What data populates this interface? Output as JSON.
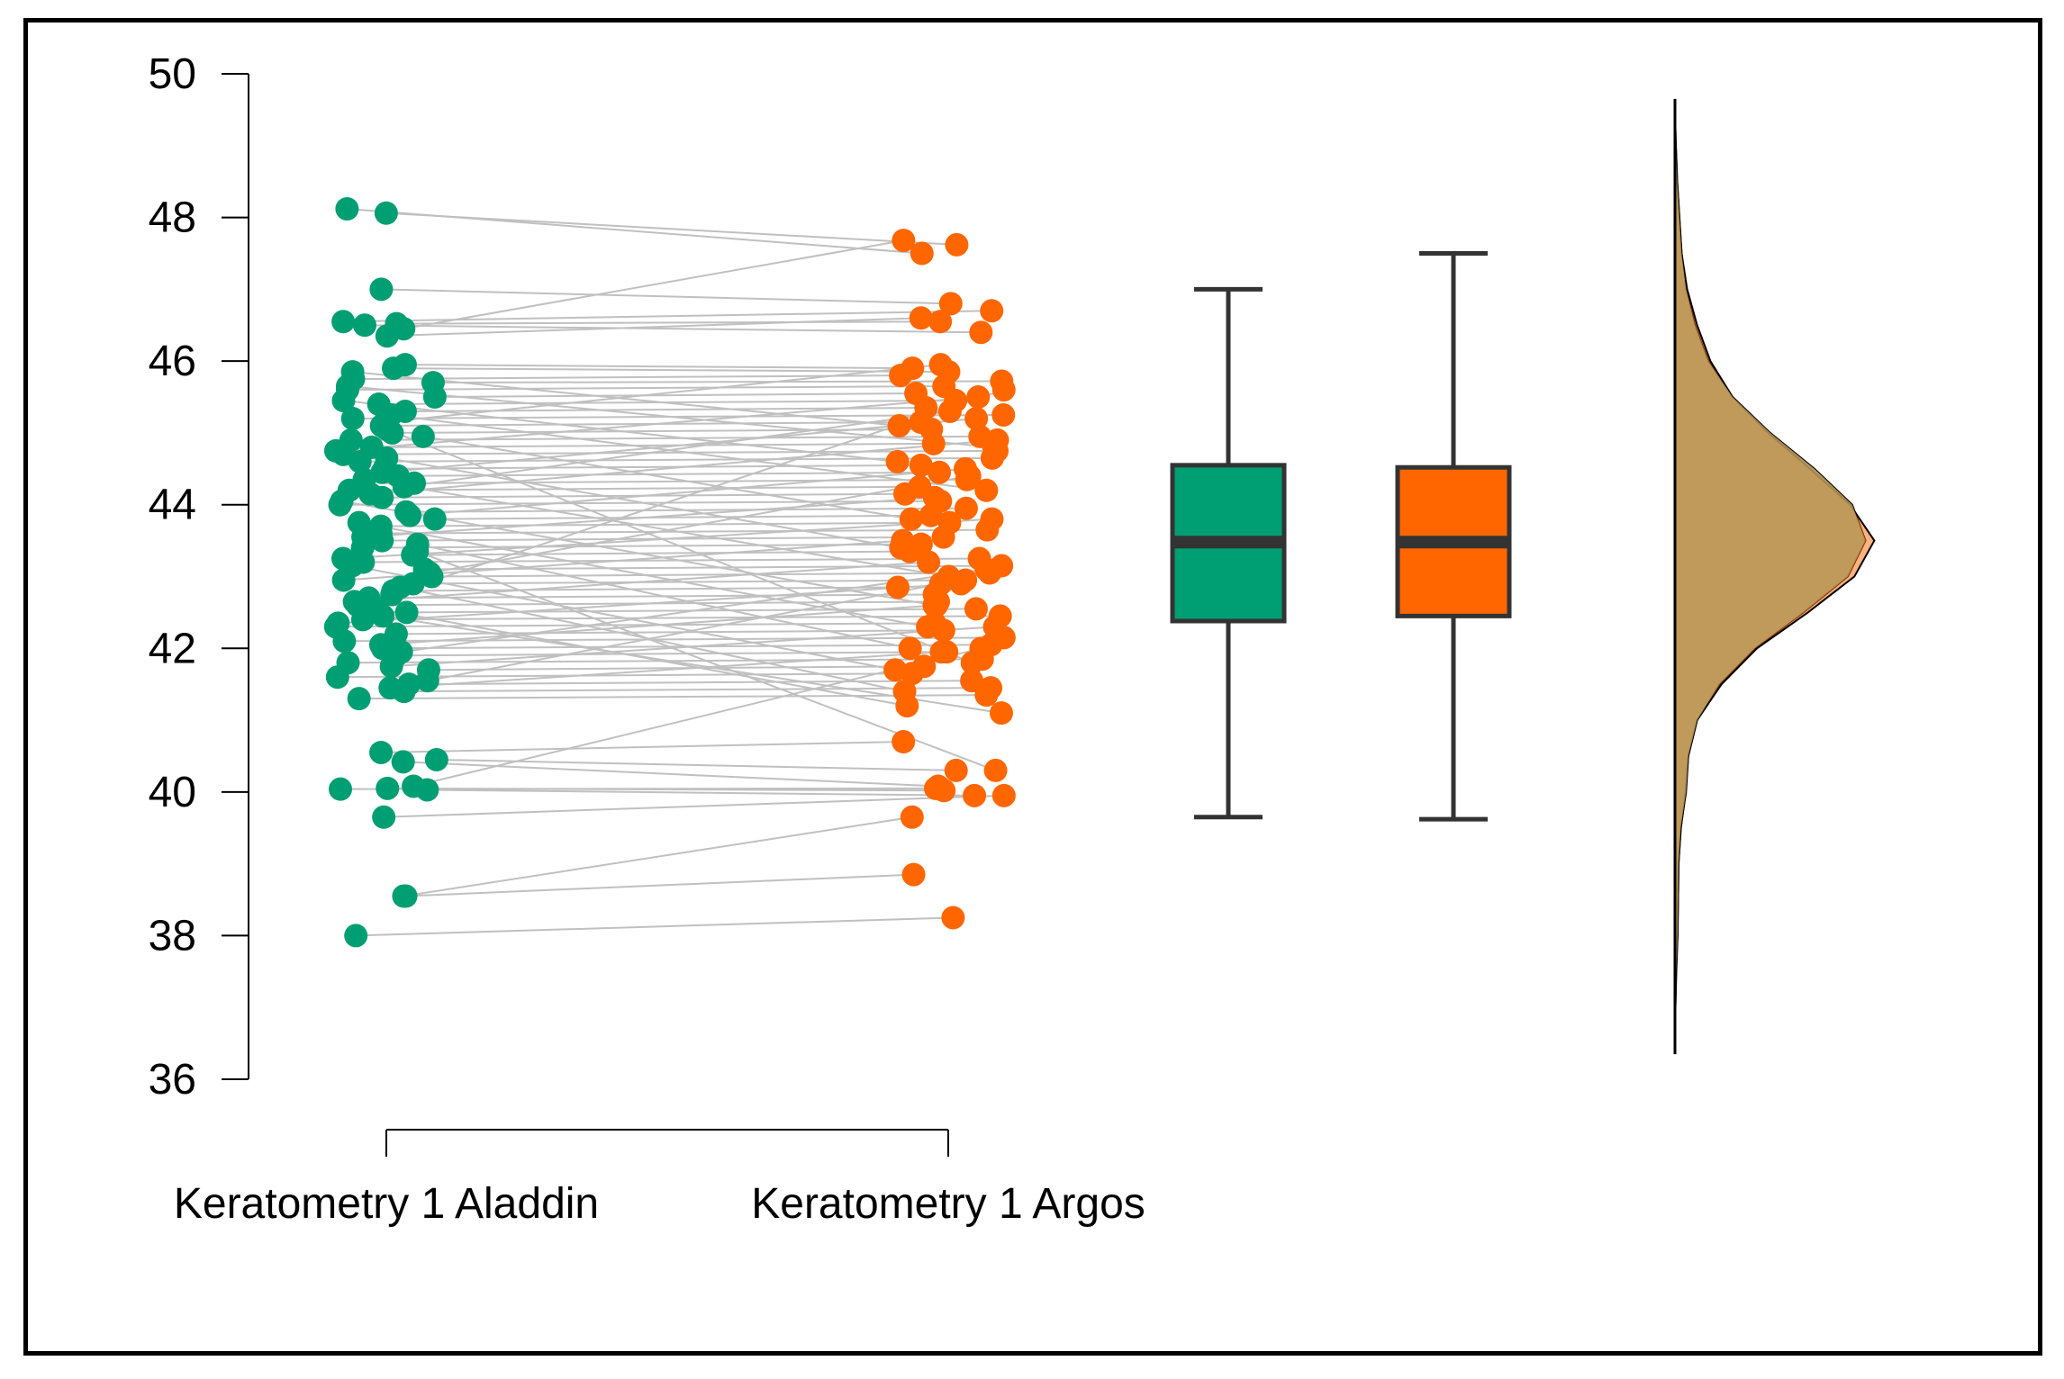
{
  "chart_data": {
    "type": "raincloud",
    "ylim": [
      36,
      50
    ],
    "y_ticks": [
      "36",
      "38",
      "40",
      "42",
      "44",
      "46",
      "48",
      "50"
    ],
    "categories": [
      "Keratometry 1 Aladdin",
      "Keratometry 1 Argos"
    ],
    "colors": {
      "Keratometry 1 Aladdin": "#009E73",
      "Keratometry 1 Argos": "#FF6600",
      "lines": "#c0c0c0",
      "density": "#C09A5C"
    },
    "paired_points": [
      [
        48.06,
        47.62
      ],
      [
        48.12,
        47.5
      ],
      [
        47.0,
        46.8
      ],
      [
        46.55,
        46.7
      ],
      [
        46.52,
        46.55
      ],
      [
        46.5,
        46.4
      ],
      [
        46.45,
        47.68
      ],
      [
        46.35,
        46.6
      ],
      [
        45.95,
        45.9
      ],
      [
        45.9,
        45.85
      ],
      [
        45.75,
        45.8
      ],
      [
        45.7,
        45.72
      ],
      [
        45.6,
        45.65
      ],
      [
        45.5,
        45.55
      ],
      [
        45.4,
        45.45
      ],
      [
        45.3,
        45.35
      ],
      [
        45.2,
        45.25
      ],
      [
        45.1,
        45.15
      ],
      [
        45.0,
        45.05
      ],
      [
        44.9,
        44.95
      ],
      [
        44.8,
        44.85
      ],
      [
        44.7,
        44.75
      ],
      [
        44.6,
        44.65
      ],
      [
        44.5,
        44.55
      ],
      [
        44.4,
        44.45
      ],
      [
        44.3,
        44.35
      ],
      [
        44.2,
        44.25
      ],
      [
        44.1,
        44.15
      ],
      [
        44.0,
        44.05
      ],
      [
        43.9,
        43.95
      ],
      [
        43.8,
        43.85
      ],
      [
        43.7,
        43.75
      ],
      [
        43.6,
        43.65
      ],
      [
        43.5,
        43.55
      ],
      [
        43.4,
        43.45
      ],
      [
        43.3,
        43.35
      ],
      [
        43.2,
        43.25
      ],
      [
        43.1,
        43.15
      ],
      [
        43.0,
        43.05
      ],
      [
        42.9,
        42.95
      ],
      [
        42.8,
        42.85
      ],
      [
        42.7,
        42.75
      ],
      [
        42.6,
        42.65
      ],
      [
        42.5,
        42.55
      ],
      [
        42.4,
        42.45
      ],
      [
        42.3,
        42.35
      ],
      [
        42.2,
        42.25
      ],
      [
        42.1,
        42.15
      ],
      [
        42.0,
        42.05
      ],
      [
        41.9,
        41.95
      ],
      [
        41.8,
        41.85
      ],
      [
        41.7,
        41.75
      ],
      [
        41.6,
        41.65
      ],
      [
        41.5,
        41.55
      ],
      [
        41.4,
        41.45
      ],
      [
        41.3,
        41.35
      ],
      [
        45.85,
        45.1
      ],
      [
        45.45,
        44.6
      ],
      [
        45.25,
        44.2
      ],
      [
        44.95,
        43.8
      ],
      [
        44.65,
        43.4
      ],
      [
        44.35,
        43.0
      ],
      [
        44.05,
        42.6
      ],
      [
        43.75,
        42.3
      ],
      [
        43.45,
        42.0
      ],
      [
        43.15,
        41.7
      ],
      [
        42.85,
        41.4
      ],
      [
        42.55,
        41.2
      ],
      [
        45.15,
        45.95
      ],
      [
        44.75,
        45.5
      ],
      [
        44.45,
        45.2
      ],
      [
        44.15,
        44.9
      ],
      [
        43.85,
        44.5
      ],
      [
        43.55,
        44.1
      ],
      [
        43.25,
        43.8
      ],
      [
        42.95,
        43.5
      ],
      [
        42.65,
        43.2
      ],
      [
        42.35,
        42.9
      ],
      [
        42.05,
        42.6
      ],
      [
        41.75,
        42.3
      ],
      [
        41.45,
        41.95
      ],
      [
        45.65,
        44.8
      ],
      [
        44.25,
        45.3
      ],
      [
        43.05,
        44.4
      ],
      [
        42.45,
        41.1
      ],
      [
        41.55,
        42.9
      ],
      [
        45.05,
        41.8
      ],
      [
        43.35,
        40.3
      ],
      [
        42.75,
        45.6
      ],
      [
        41.95,
        43.1
      ],
      [
        40.55,
        40.7
      ],
      [
        40.45,
        40.3
      ],
      [
        40.42,
        40.08
      ],
      [
        40.08,
        42.0
      ],
      [
        40.05,
        40.02
      ],
      [
        40.03,
        39.95
      ],
      [
        40.04,
        40.05
      ],
      [
        39.65,
        39.95
      ],
      [
        38.55,
        39.65
      ],
      [
        38.55,
        38.85
      ],
      [
        38.0,
        38.25
      ]
    ],
    "boxplot": [
      {
        "name": "Keratometry 1 Aladdin",
        "min": 39.65,
        "q1": 42.38,
        "median": 43.48,
        "q3": 44.55,
        "max": 47.0
      },
      {
        "name": "Keratometry 1 Argos",
        "min": 39.62,
        "q1": 42.45,
        "median": 43.48,
        "q3": 44.52,
        "max": 47.5
      }
    ],
    "density": {
      "y": [
        36.5,
        37.0,
        37.5,
        38.0,
        38.5,
        39.0,
        39.5,
        40.0,
        40.5,
        41.0,
        41.5,
        42.0,
        42.5,
        43.0,
        43.5,
        44.0,
        44.5,
        45.0,
        45.5,
        46.0,
        46.5,
        47.0,
        47.5,
        48.0,
        48.5,
        49.0,
        49.5
      ],
      "Keratometry 1 Aladdin": [
        0.0,
        0.002,
        0.006,
        0.012,
        0.014,
        0.016,
        0.026,
        0.05,
        0.06,
        0.1,
        0.2,
        0.36,
        0.58,
        0.78,
        0.86,
        0.8,
        0.63,
        0.43,
        0.26,
        0.15,
        0.09,
        0.05,
        0.03,
        0.02,
        0.01,
        0.004,
        0.0
      ],
      "Keratometry 1 Argos": [
        0.0,
        0.002,
        0.005,
        0.011,
        0.014,
        0.016,
        0.027,
        0.048,
        0.06,
        0.1,
        0.21,
        0.37,
        0.6,
        0.81,
        0.9,
        0.79,
        0.61,
        0.42,
        0.26,
        0.16,
        0.1,
        0.055,
        0.03,
        0.02,
        0.01,
        0.004,
        0.0
      ]
    }
  }
}
